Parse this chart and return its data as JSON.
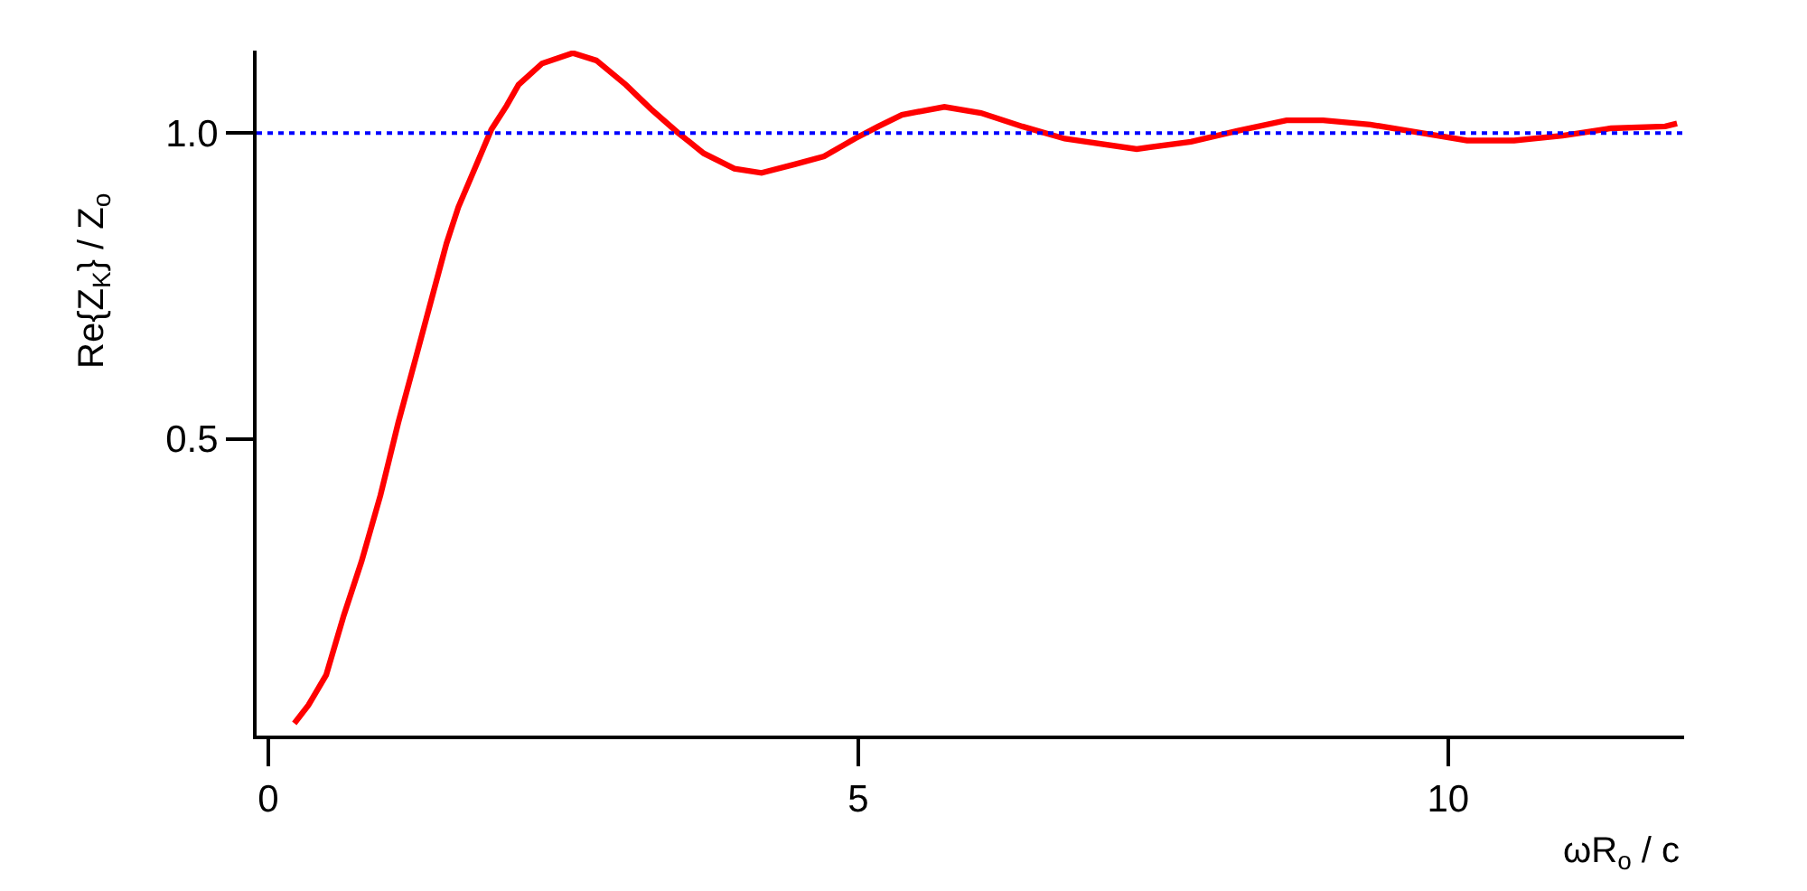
{
  "chart_data": {
    "type": "line",
    "xlabel": "ωR$_{o}$ / c",
    "ylabel": "Re{Z$_{K}$} / Z$_{o}$",
    "x": [
      0.22,
      0.34,
      0.49,
      0.64,
      0.79,
      0.95,
      1.1,
      1.25,
      1.4,
      1.51,
      1.61,
      1.76,
      1.89,
      2.02,
      2.12,
      2.32,
      2.58,
      2.78,
      3.03,
      3.24,
      3.47,
      3.69,
      3.95,
      4.18,
      4.46,
      4.71,
      4.97,
      5.17,
      5.37,
      5.73,
      6.04,
      6.39,
      6.75,
      7.36,
      7.82,
      8.22,
      8.63,
      8.94,
      9.34,
      9.75,
      10.16,
      10.56,
      10.97,
      11.38,
      11.84,
      11.94
    ],
    "series": [
      {
        "color": "#ff0000",
        "values": [
          0.035,
          0.065,
          0.114,
          0.212,
          0.3,
          0.408,
          0.526,
          0.633,
          0.741,
          0.82,
          0.879,
          0.947,
          1.006,
          1.045,
          1.079,
          1.114,
          1.131,
          1.119,
          1.079,
          1.04,
          1.001,
          0.967,
          0.942,
          0.935,
          0.949,
          0.962,
          0.991,
          1.011,
          1.03,
          1.043,
          1.033,
          1.011,
          0.991,
          0.974,
          0.986,
          1.004,
          1.021,
          1.021,
          1.014,
          1.001,
          0.988,
          0.988,
          0.996,
          1.008,
          1.011,
          1.016
        ]
      }
    ],
    "xlim": [
      -0.1,
      12
    ],
    "ylim": [
      0.015,
      1.135
    ],
    "xticks": [
      0,
      5,
      10
    ],
    "yticks": [
      0.5,
      {
        "value": 1,
        "label": "1.0"
      }
    ],
    "marker": "none",
    "line_style": "solid",
    "ref_lines": [
      {
        "axis": "y",
        "value": 1,
        "color": "#0000ff",
        "line_style": "dotted"
      }
    ]
  }
}
